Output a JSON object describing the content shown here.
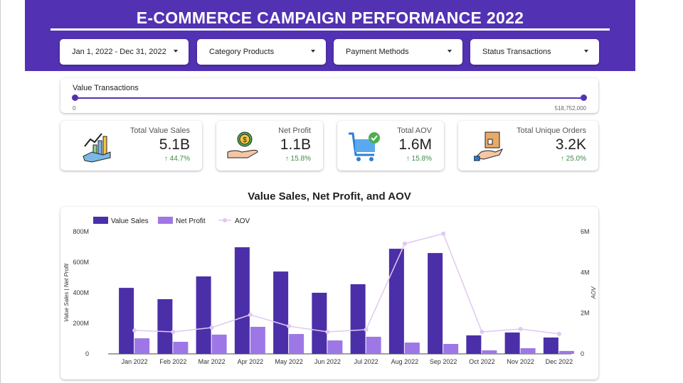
{
  "header": {
    "title": "E-COMMERCE CAMPAIGN PERFORMANCE 2022"
  },
  "filters": [
    {
      "label": "Jan 1, 2022 - Dec 31, 2022"
    },
    {
      "label": "Category Products"
    },
    {
      "label": "Payment Methods"
    },
    {
      "label": "Status Transactions"
    }
  ],
  "slider": {
    "label": "Value Transactions",
    "min": "0",
    "max": "518,752,000"
  },
  "kpis": [
    {
      "label": "Total Value Sales",
      "value": "5.1B",
      "delta": "↑ 44.7%",
      "icon": "sales-growth-icon"
    },
    {
      "label": "Net Profit",
      "value": "1.1B",
      "delta": "↑ 15.8%",
      "icon": "money-hand-icon"
    },
    {
      "label": "Total AOV",
      "value": "1.6M",
      "delta": "↑ 15.8%",
      "icon": "cart-check-icon"
    },
    {
      "label": "Total Unique Orders",
      "value": "3.2K",
      "delta": "↑ 25.0%",
      "icon": "package-hand-icon"
    }
  ],
  "colors": {
    "brand": "#5232b3",
    "value_sales": "#4b2fa8",
    "net_profit": "#9e77e6",
    "aov": "#e0c8f2",
    "positive": "#3c8c4a"
  },
  "chart_data": {
    "type": "bar",
    "title": "Value Sales, Net Profit, and AOV",
    "categories": [
      "Jan 2022",
      "Feb 2022",
      "Mar 2022",
      "Apr 2022",
      "May 2022",
      "Jun 2022",
      "Jul 2022",
      "Aug 2022",
      "Sep 2022",
      "Oct 2022",
      "Nov 2022",
      "Dec 2022"
    ],
    "series": [
      {
        "name": "Value Sales",
        "type": "bar",
        "axis": "left",
        "values": [
          432000000,
          358000000,
          507000000,
          698000000,
          539000000,
          400000000,
          456000000,
          688000000,
          660000000,
          121000000,
          140000000,
          107000000
        ]
      },
      {
        "name": "Net Profit",
        "type": "bar",
        "axis": "left",
        "values": [
          102000000,
          79000000,
          126000000,
          177000000,
          130000000,
          88000000,
          112000000,
          74000000,
          65000000,
          23000000,
          37000000,
          19000000
        ]
      },
      {
        "name": "AOV",
        "type": "line",
        "axis": "right",
        "values": [
          1150000,
          1080000,
          1290000,
          1920000,
          1360000,
          1080000,
          1190000,
          5410000,
          5900000,
          1080000,
          1220000,
          980000
        ]
      }
    ],
    "ylabel": "Value Sales | Net Profit",
    "y2label": "AOV",
    "ylim": [
      0,
      800000000
    ],
    "y2lim": [
      0,
      6000000
    ],
    "yticks": [
      "0",
      "200M",
      "400M",
      "600M",
      "800M"
    ],
    "y2ticks": [
      "0",
      "2M",
      "4M",
      "6M"
    ],
    "legend": "top-left",
    "grid": false
  }
}
